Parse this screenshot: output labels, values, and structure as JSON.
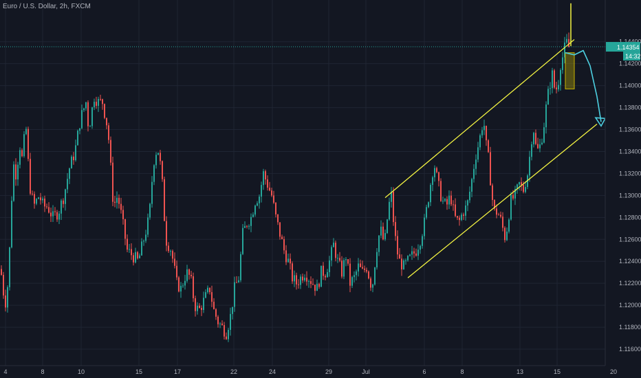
{
  "header": {
    "symbol": "Euro / U.S. Dollar, 2h, FXCM"
  },
  "price_tag": {
    "value": "1.14354",
    "countdown": "14:32",
    "color": "#26a69a"
  },
  "colors": {
    "up": "#26a69a",
    "down": "#ef5350",
    "channel": "#f5f542",
    "projection": "#4dd0e1",
    "box": "#c8b400",
    "grid": "#1f2533",
    "axis_text": "#b2b5be"
  },
  "chart_data": {
    "type": "candlestick",
    "symbol": "EUR/USD",
    "interval": "2h",
    "ylim": [
      1.1145,
      1.1478
    ],
    "y_ticks": [
      "1.14400",
      "1.14200",
      "1.14000",
      "1.13800",
      "1.13600",
      "1.13400",
      "1.13200",
      "1.13000",
      "1.12800",
      "1.12600",
      "1.12400",
      "1.12200",
      "1.12000",
      "1.11800",
      "1.11600"
    ],
    "x_ticks": [
      "4",
      "8",
      "10",
      "15",
      "17",
      "22",
      "24",
      "29",
      "Jul",
      "6",
      "8",
      "13",
      "15",
      "20"
    ],
    "price_line": 1.14354,
    "close_trend": [
      [
        0,
        1.1233
      ],
      [
        4,
        1.1212
      ],
      [
        8,
        1.12
      ],
      [
        12,
        1.1235
      ],
      [
        18,
        1.133
      ],
      [
        22,
        1.132
      ],
      [
        28,
        1.1345
      ],
      [
        32,
        1.133
      ],
      [
        36,
        1.137
      ],
      [
        42,
        1.131
      ],
      [
        48,
        1.129
      ],
      [
        56,
        1.13
      ],
      [
        62,
        1.129
      ],
      [
        68,
        1.129
      ],
      [
        76,
        1.128
      ],
      [
        84,
        1.1285
      ],
      [
        92,
        1.13
      ],
      [
        100,
        1.1325
      ],
      [
        108,
        1.134
      ],
      [
        116,
        1.137
      ],
      [
        124,
        1.1385
      ],
      [
        128,
        1.136
      ],
      [
        136,
        1.139
      ],
      [
        142,
        1.1385
      ],
      [
        148,
        1.1385
      ],
      [
        156,
        1.136
      ],
      [
        164,
        1.129
      ],
      [
        170,
        1.13
      ],
      [
        176,
        1.128
      ],
      [
        184,
        1.125
      ],
      [
        192,
        1.1245
      ],
      [
        200,
        1.124
      ],
      [
        208,
        1.126
      ],
      [
        216,
        1.128
      ],
      [
        222,
        1.133
      ],
      [
        228,
        1.1345
      ],
      [
        234,
        1.132
      ],
      [
        240,
        1.126
      ],
      [
        248,
        1.125
      ],
      [
        256,
        1.122
      ],
      [
        262,
        1.1215
      ],
      [
        270,
        1.123
      ],
      [
        276,
        1.1225
      ],
      [
        282,
        1.12
      ],
      [
        288,
        1.1195
      ],
      [
        296,
        1.1205
      ],
      [
        304,
        1.1215
      ],
      [
        310,
        1.1195
      ],
      [
        316,
        1.1185
      ],
      [
        322,
        1.118
      ],
      [
        328,
        1.1175
      ],
      [
        334,
        1.119
      ],
      [
        340,
        1.1215
      ],
      [
        346,
        1.1225
      ],
      [
        352,
        1.1265
      ],
      [
        358,
        1.1275
      ],
      [
        364,
        1.128
      ],
      [
        370,
        1.1295
      ],
      [
        376,
        1.13
      ],
      [
        382,
        1.132
      ],
      [
        388,
        1.131
      ],
      [
        394,
        1.13
      ],
      [
        400,
        1.128
      ],
      [
        406,
        1.1265
      ],
      [
        412,
        1.125
      ],
      [
        418,
        1.124
      ],
      [
        424,
        1.1225
      ],
      [
        430,
        1.122
      ],
      [
        436,
        1.1225
      ],
      [
        442,
        1.123
      ],
      [
        448,
        1.1225
      ],
      [
        454,
        1.122
      ],
      [
        460,
        1.1215
      ],
      [
        466,
        1.123
      ],
      [
        472,
        1.123
      ],
      [
        478,
        1.124
      ],
      [
        484,
        1.1255
      ],
      [
        490,
        1.124
      ],
      [
        496,
        1.123
      ],
      [
        502,
        1.1245
      ],
      [
        508,
        1.122
      ],
      [
        514,
        1.1225
      ],
      [
        520,
        1.1235
      ],
      [
        526,
        1.123
      ],
      [
        532,
        1.1235
      ],
      [
        540,
        1.1215
      ],
      [
        546,
        1.125
      ],
      [
        552,
        1.127
      ],
      [
        558,
        1.1255
      ],
      [
        564,
        1.129
      ],
      [
        568,
        1.13
      ],
      [
        572,
        1.127
      ],
      [
        576,
        1.125
      ],
      [
        580,
        1.124
      ],
      [
        586,
        1.1235
      ],
      [
        592,
        1.124
      ],
      [
        598,
        1.1245
      ],
      [
        604,
        1.125
      ],
      [
        610,
        1.126
      ],
      [
        616,
        1.1275
      ],
      [
        620,
        1.129
      ],
      [
        626,
        1.1315
      ],
      [
        630,
        1.133
      ],
      [
        636,
        1.131
      ],
      [
        642,
        1.1295
      ],
      [
        648,
        1.129
      ],
      [
        654,
        1.13
      ],
      [
        660,
        1.128
      ],
      [
        666,
        1.1275
      ],
      [
        672,
        1.1285
      ],
      [
        678,
        1.129
      ],
      [
        684,
        1.131
      ],
      [
        690,
        1.1335
      ],
      [
        696,
        1.135
      ],
      [
        702,
        1.137
      ],
      [
        706,
        1.1345
      ],
      [
        710,
        1.133
      ],
      [
        714,
        1.13
      ],
      [
        718,
        1.1285
      ],
      [
        722,
        1.1285
      ],
      [
        726,
        1.128
      ],
      [
        730,
        1.127
      ],
      [
        734,
        1.126
      ],
      [
        738,
        1.128
      ],
      [
        742,
        1.1295
      ],
      [
        748,
        1.13
      ],
      [
        754,
        1.131
      ],
      [
        760,
        1.1305
      ],
      [
        766,
        1.132
      ],
      [
        770,
        1.134
      ],
      [
        774,
        1.1365
      ],
      [
        778,
        1.1345
      ],
      [
        782,
        1.134
      ],
      [
        786,
        1.135
      ],
      [
        790,
        1.1365
      ],
      [
        794,
        1.1385
      ],
      [
        798,
        1.14
      ],
      [
        802,
        1.141
      ],
      [
        806,
        1.1395
      ],
      [
        810,
        1.14
      ],
      [
        814,
        1.142
      ],
      [
        818,
        1.1428
      ],
      [
        822,
        1.144
      ],
      [
        826,
        1.1435
      ]
    ],
    "annotations": {
      "channel_upper": [
        [
          560,
          1.1298
        ],
        [
          835,
          1.1442
        ]
      ],
      "channel_lower": [
        [
          593,
          1.1225
        ],
        [
          868,
          1.1365
        ]
      ],
      "projection": [
        [
          822,
          1.143
        ],
        [
          835,
          1.1428
        ],
        [
          848,
          1.1432
        ],
        [
          858,
          1.1418
        ],
        [
          868,
          1.139
        ],
        [
          874,
          1.1367
        ]
      ],
      "box": {
        "x0": 822,
        "x1": 835,
        "y0": 1.143,
        "y1": 1.1397
      }
    }
  }
}
